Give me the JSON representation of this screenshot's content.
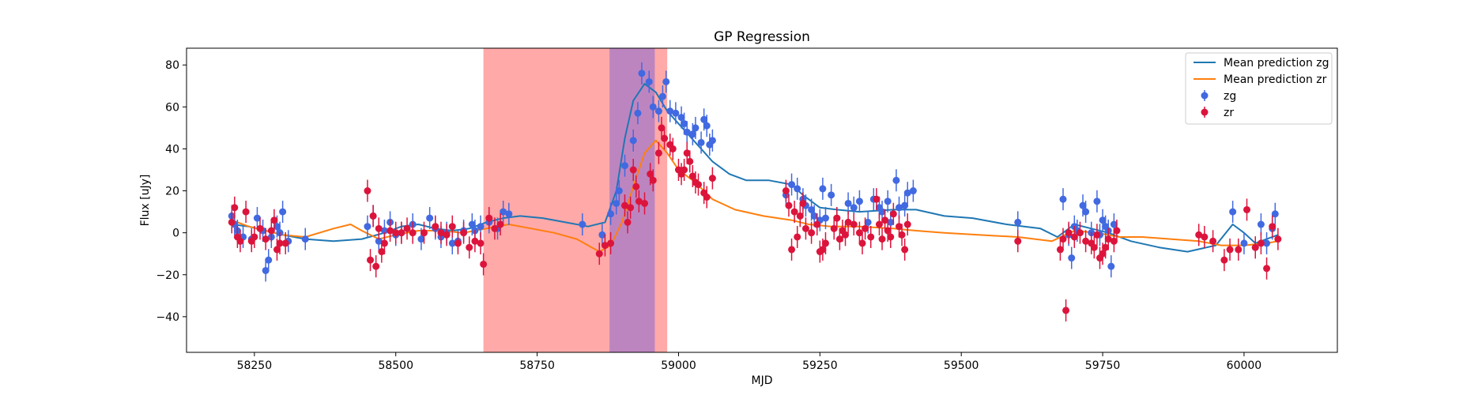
{
  "chart_data": {
    "type": "scatter",
    "title": "GP Regression",
    "xlabel": "MJD",
    "ylabel": "Flux [uJy]",
    "xlim": [
      58130,
      60165
    ],
    "ylim": [
      -57,
      88
    ],
    "xticks": [
      58250,
      58500,
      58750,
      59000,
      59250,
      59500,
      59750,
      60000
    ],
    "yticks": [
      -40,
      -20,
      0,
      20,
      40,
      60,
      80
    ],
    "grid": false,
    "legend": {
      "location": "top-right",
      "entries": [
        "Mean prediction zg",
        "Mean prediction zr",
        "zg",
        "zr"
      ]
    },
    "shaded_regions": [
      {
        "x": [
          58655,
          58980
        ],
        "color": "#ff9a9a"
      },
      {
        "x": [
          58878,
          58958
        ],
        "color": "#b27fc4"
      }
    ],
    "colors": {
      "zg_line": "#1f77b4",
      "zr_line": "#ff7f0e",
      "zg_points": "#4169e1",
      "zr_points": "#dc143c"
    },
    "series": [
      {
        "name": "Mean prediction zg",
        "kind": "line",
        "x": [
          58210,
          58240,
          58270,
          58300,
          58340,
          58390,
          58440,
          58480,
          58510,
          58540,
          58570,
          58600,
          58630,
          58660,
          58690,
          58720,
          58760,
          58800,
          58840,
          58870,
          58890,
          58905,
          58920,
          58940,
          58960,
          58980,
          59000,
          59020,
          59040,
          59060,
          59090,
          59120,
          59160,
          59200,
          59220,
          59250,
          59280,
          59320,
          59380,
          59420,
          59470,
          59520,
          59580,
          59640,
          59670,
          59700,
          59730,
          59760,
          59800,
          59850,
          59900,
          59950,
          59980,
          60000,
          60020,
          60040,
          60060
        ],
        "y": [
          4,
          3,
          1,
          -1,
          -3,
          -4,
          -3,
          0,
          3,
          4,
          2,
          1,
          2,
          5,
          7,
          8,
          7,
          5,
          3,
          5,
          20,
          45,
          63,
          71,
          67,
          58,
          52,
          46,
          40,
          34,
          28,
          25,
          25,
          23,
          18,
          12,
          11,
          10,
          11,
          11,
          8,
          7,
          4,
          2,
          -2,
          4,
          2,
          0,
          -4,
          -7,
          -9,
          -6,
          4,
          0,
          -5,
          -3,
          -1
        ]
      },
      {
        "name": "Mean prediction zr",
        "kind": "line",
        "x": [
          58210,
          58240,
          58270,
          58300,
          58340,
          58390,
          58420,
          58440,
          58470,
          58500,
          58540,
          58580,
          58620,
          58660,
          58700,
          58740,
          58780,
          58820,
          58860,
          58880,
          58900,
          58920,
          58940,
          58960,
          58980,
          59000,
          59030,
          59060,
          59100,
          59150,
          59200,
          59230,
          59270,
          59320,
          59380,
          59420,
          59470,
          59530,
          59600,
          59660,
          59700,
          59740,
          59780,
          59820,
          59870,
          59920,
          59960,
          60000,
          60040,
          60060
        ],
        "y": [
          6,
          3,
          1,
          -1,
          -2,
          2,
          4,
          1,
          -3,
          -1,
          1,
          1,
          0,
          2,
          4,
          2,
          0,
          -3,
          -9,
          -6,
          5,
          22,
          38,
          44,
          38,
          30,
          24,
          16,
          11,
          8,
          6,
          4,
          3,
          3,
          2,
          1,
          0,
          -1,
          -2,
          -4,
          1,
          0,
          -2,
          -2,
          -3,
          -4,
          -6,
          -6,
          -5,
          -4
        ]
      },
      {
        "name": "zg",
        "kind": "points",
        "points": [
          [
            58210,
            8
          ],
          [
            58215,
            4
          ],
          [
            58220,
            1
          ],
          [
            58230,
            -2
          ],
          [
            58245,
            -3
          ],
          [
            58255,
            7
          ],
          [
            58265,
            1
          ],
          [
            58270,
            -18
          ],
          [
            58275,
            -13
          ],
          [
            58280,
            -2
          ],
          [
            58290,
            3
          ],
          [
            58295,
            0
          ],
          [
            58300,
            10
          ],
          [
            58310,
            -4
          ],
          [
            58340,
            -3
          ],
          [
            58450,
            3
          ],
          [
            58460,
            8
          ],
          [
            58470,
            -4
          ],
          [
            58480,
            1
          ],
          [
            58490,
            5
          ],
          [
            58500,
            -1
          ],
          [
            58510,
            0
          ],
          [
            58530,
            4
          ],
          [
            58545,
            -3
          ],
          [
            58560,
            7
          ],
          [
            58570,
            2
          ],
          [
            58580,
            -2
          ],
          [
            58590,
            0
          ],
          [
            58600,
            -5
          ],
          [
            58610,
            -4
          ],
          [
            58620,
            1
          ],
          [
            58635,
            4
          ],
          [
            58640,
            1
          ],
          [
            58650,
            3
          ],
          [
            58665,
            5
          ],
          [
            58680,
            2
          ],
          [
            58690,
            10
          ],
          [
            58700,
            9
          ],
          [
            58830,
            4
          ],
          [
            58865,
            -1
          ],
          [
            58880,
            9
          ],
          [
            58890,
            14
          ],
          [
            58895,
            20
          ],
          [
            58905,
            32
          ],
          [
            58920,
            44
          ],
          [
            58928,
            57
          ],
          [
            58935,
            76
          ],
          [
            58948,
            72
          ],
          [
            58955,
            60
          ],
          [
            58965,
            58
          ],
          [
            58972,
            65
          ],
          [
            58978,
            72
          ],
          [
            58985,
            58
          ],
          [
            58995,
            57
          ],
          [
            59005,
            55
          ],
          [
            59010,
            52
          ],
          [
            59015,
            48
          ],
          [
            59025,
            47
          ],
          [
            59030,
            50
          ],
          [
            59040,
            43
          ],
          [
            59045,
            54
          ],
          [
            59050,
            51
          ],
          [
            59055,
            42
          ],
          [
            59060,
            44
          ],
          [
            59190,
            18
          ],
          [
            59200,
            23
          ],
          [
            59210,
            21
          ],
          [
            59220,
            16
          ],
          [
            59225,
            13
          ],
          [
            59235,
            11
          ],
          [
            59240,
            8
          ],
          [
            59250,
            6
          ],
          [
            59255,
            21
          ],
          [
            59260,
            7
          ],
          [
            59270,
            18
          ],
          [
            59280,
            7
          ],
          [
            59300,
            14
          ],
          [
            59310,
            12
          ],
          [
            59320,
            15
          ],
          [
            59335,
            5
          ],
          [
            59345,
            16
          ],
          [
            59355,
            12
          ],
          [
            59360,
            10
          ],
          [
            59370,
            15
          ],
          [
            59375,
            5
          ],
          [
            59385,
            25
          ],
          [
            59390,
            12
          ],
          [
            59400,
            13
          ],
          [
            59405,
            19
          ],
          [
            59415,
            20
          ],
          [
            59600,
            5
          ],
          [
            59680,
            16
          ],
          [
            59690,
            -1
          ],
          [
            59695,
            -12
          ],
          [
            59700,
            3
          ],
          [
            59705,
            1
          ],
          [
            59715,
            13
          ],
          [
            59720,
            10
          ],
          [
            59730,
            0
          ],
          [
            59740,
            15
          ],
          [
            59745,
            -1
          ],
          [
            59750,
            6
          ],
          [
            59755,
            3
          ],
          [
            59760,
            1
          ],
          [
            59765,
            -16
          ],
          [
            59770,
            4
          ],
          [
            59980,
            10
          ],
          [
            60000,
            -5
          ],
          [
            60020,
            -7
          ],
          [
            60030,
            4
          ],
          [
            60040,
            -5
          ],
          [
            60050,
            2
          ],
          [
            60055,
            9
          ]
        ]
      },
      {
        "name": "zr",
        "kind": "points",
        "points": [
          [
            58210,
            5
          ],
          [
            58215,
            12
          ],
          [
            58220,
            -2
          ],
          [
            58225,
            -4
          ],
          [
            58235,
            10
          ],
          [
            58245,
            -4
          ],
          [
            58250,
            -2
          ],
          [
            58260,
            2
          ],
          [
            58270,
            -3
          ],
          [
            58280,
            1
          ],
          [
            58285,
            6
          ],
          [
            58290,
            -8
          ],
          [
            58295,
            -5
          ],
          [
            58305,
            -5
          ],
          [
            58450,
            20
          ],
          [
            58455,
            -13
          ],
          [
            58460,
            8
          ],
          [
            58465,
            -16
          ],
          [
            58470,
            2
          ],
          [
            58475,
            -9
          ],
          [
            58480,
            -5
          ],
          [
            58490,
            1
          ],
          [
            58500,
            0
          ],
          [
            58510,
            0
          ],
          [
            58520,
            2
          ],
          [
            58530,
            0
          ],
          [
            58550,
            0
          ],
          [
            58570,
            3
          ],
          [
            58580,
            0
          ],
          [
            58590,
            -1
          ],
          [
            58600,
            3
          ],
          [
            58610,
            -5
          ],
          [
            58620,
            0
          ],
          [
            58630,
            -7
          ],
          [
            58640,
            -4
          ],
          [
            58650,
            -5
          ],
          [
            58655,
            -15
          ],
          [
            58665,
            7
          ],
          [
            58675,
            2
          ],
          [
            58685,
            4
          ],
          [
            58860,
            -10
          ],
          [
            58870,
            -6
          ],
          [
            58880,
            -5
          ],
          [
            58905,
            13
          ],
          [
            58910,
            5
          ],
          [
            58915,
            12
          ],
          [
            58920,
            30
          ],
          [
            58925,
            22
          ],
          [
            58930,
            15
          ],
          [
            58940,
            14
          ],
          [
            58950,
            28
          ],
          [
            58955,
            25
          ],
          [
            58965,
            38
          ],
          [
            58970,
            50
          ],
          [
            58975,
            45
          ],
          [
            58985,
            42
          ],
          [
            58990,
            40
          ],
          [
            59000,
            30
          ],
          [
            59005,
            28
          ],
          [
            59010,
            30
          ],
          [
            59015,
            38
          ],
          [
            59020,
            34
          ],
          [
            59025,
            27
          ],
          [
            59030,
            24
          ],
          [
            59035,
            23
          ],
          [
            59045,
            19
          ],
          [
            59050,
            17
          ],
          [
            59060,
            26
          ],
          [
            59190,
            20
          ],
          [
            59195,
            13
          ],
          [
            59200,
            -8
          ],
          [
            59205,
            10
          ],
          [
            59210,
            -2
          ],
          [
            59215,
            8
          ],
          [
            59220,
            14
          ],
          [
            59225,
            2
          ],
          [
            59235,
            0
          ],
          [
            59245,
            4
          ],
          [
            59250,
            -9
          ],
          [
            59255,
            -8
          ],
          [
            59260,
            -5
          ],
          [
            59275,
            2
          ],
          [
            59280,
            7
          ],
          [
            59285,
            -3
          ],
          [
            59290,
            1
          ],
          [
            59295,
            -1
          ],
          [
            59300,
            5
          ],
          [
            59310,
            4
          ],
          [
            59320,
            0
          ],
          [
            59325,
            -5
          ],
          [
            59330,
            2
          ],
          [
            59340,
            -2
          ],
          [
            59350,
            16
          ],
          [
            59355,
            4
          ],
          [
            59360,
            -3
          ],
          [
            59365,
            6
          ],
          [
            59370,
            1
          ],
          [
            59375,
            -2
          ],
          [
            59380,
            9
          ],
          [
            59390,
            3
          ],
          [
            59395,
            -1
          ],
          [
            59400,
            -8
          ],
          [
            59405,
            4
          ],
          [
            59600,
            -4
          ],
          [
            59675,
            -8
          ],
          [
            59680,
            -3
          ],
          [
            59685,
            -37
          ],
          [
            59690,
            0
          ],
          [
            59700,
            -2
          ],
          [
            59710,
            0
          ],
          [
            59720,
            -4
          ],
          [
            59730,
            -5
          ],
          [
            59735,
            -7
          ],
          [
            59740,
            -1
          ],
          [
            59745,
            -12
          ],
          [
            59750,
            -10
          ],
          [
            59755,
            -7
          ],
          [
            59760,
            -3
          ],
          [
            59770,
            -4
          ],
          [
            59775,
            1
          ],
          [
            59920,
            -1
          ],
          [
            59930,
            -2
          ],
          [
            59945,
            -4
          ],
          [
            59965,
            -13
          ],
          [
            59975,
            -8
          ],
          [
            59990,
            -8
          ],
          [
            60005,
            11
          ],
          [
            60020,
            -7
          ],
          [
            60030,
            -5
          ],
          [
            60040,
            -17
          ],
          [
            60050,
            3
          ],
          [
            60060,
            -3
          ]
        ]
      }
    ]
  }
}
